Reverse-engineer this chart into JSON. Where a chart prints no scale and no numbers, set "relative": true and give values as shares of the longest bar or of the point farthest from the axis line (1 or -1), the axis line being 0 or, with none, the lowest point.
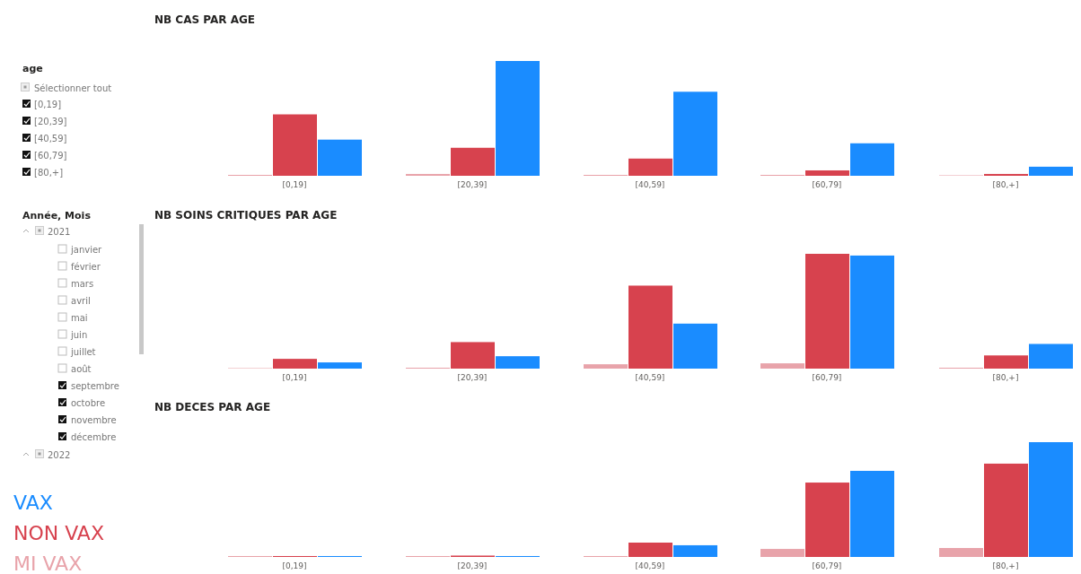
{
  "chart_data": [
    {
      "type": "bar",
      "title": "NB CAS PAR AGE",
      "relative": true,
      "categories": [
        "[0,19]",
        "[20,39]",
        "[40,59]",
        "[60,79]",
        "[80,+]"
      ],
      "legend": false,
      "series": [
        {
          "color": "#e8a3aa",
          "values": [
            0.008,
            0.016,
            0.008,
            0.008,
            0.004
          ]
        },
        {
          "color": "#d7424e",
          "values": [
            0.535,
            0.244,
            0.15,
            0.047,
            0.016
          ]
        },
        {
          "color": "#1a8cff",
          "values": [
            0.315,
            1,
            0.732,
            0.283,
            0.079
          ]
        }
      ]
    },
    {
      "type": "bar",
      "title": "NB SOINS CRITIQUES PAR AGE",
      "relative": true,
      "categories": [
        "[0,19]",
        "[20,39]",
        "[40,59]",
        "[60,79]",
        "[80,+]"
      ],
      "legend": false,
      "series": [
        {
          "color": "#e8a3aa",
          "values": [
            0.004,
            0.008,
            0.038,
            0.046,
            0.008
          ]
        },
        {
          "color": "#d7424e",
          "values": [
            0.085,
            0.231,
            0.723,
            1,
            0.115
          ]
        },
        {
          "color": "#1a8cff",
          "values": [
            0.054,
            0.108,
            0.392,
            0.985,
            0.215
          ]
        }
      ]
    },
    {
      "type": "bar",
      "title": "NB DECES PAR AGE",
      "relative": true,
      "categories": [
        "[0,19]",
        "[20,39]",
        "[40,59]",
        "[60,79]",
        "[80,+]"
      ],
      "legend": "left",
      "series": [
        {
          "name": "MI VAX",
          "color": "#e8a3aa",
          "values": [
            0.008,
            0.008,
            0.008,
            0.07,
            0.078
          ]
        },
        {
          "name": "NON VAX",
          "color": "#d7424e",
          "values": [
            0.008,
            0.012,
            0.125,
            0.648,
            0.813
          ]
        },
        {
          "name": "VAX",
          "color": "#1a8cff",
          "values": [
            0.008,
            0.008,
            0.102,
            0.75,
            1
          ]
        }
      ]
    },
    {
      "type": "other",
      "annotations": [
        "age",
        "Sélectionner tout",
        "[0,19]",
        "[20,39]",
        "[40,59]",
        "[60,79]",
        "[80,+]",
        "Année, Mois",
        "2021",
        "janvier",
        "février",
        "mars",
        "avril",
        "mai",
        "juin",
        "juillet",
        "août",
        "septembre",
        "octobre",
        "novembre",
        "décembre",
        "2022"
      ]
    }
  ]
}
